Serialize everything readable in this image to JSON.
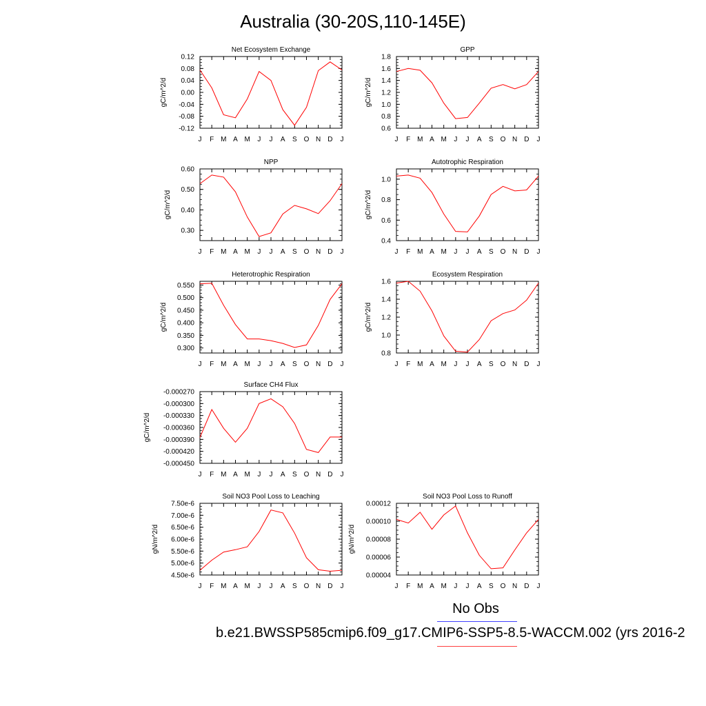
{
  "figure": {
    "title": "Australia (30-20S,110-145E)",
    "legend_obs_label": "No Obs",
    "legend_run_label": "b.e21.BWSSP585cmip6.f09_g17.CMIP6-SSP5-8.5-WACCM.002 (yrs 2016-2",
    "obs_line_color": "#4040ff",
    "line_color": "#ff0000"
  },
  "chart_data": [
    {
      "type": "line",
      "title": "Net Ecosystem Exchange",
      "ylabel": "gC/m^2/d",
      "categories": [
        "J",
        "F",
        "M",
        "A",
        "M",
        "J",
        "J",
        "A",
        "S",
        "O",
        "N",
        "D",
        "J"
      ],
      "ylim": [
        -0.12,
        0.12
      ],
      "yticks": [
        "0.12",
        "0.08",
        "0.04",
        "0.00",
        "-0.04",
        "-0.08",
        "-0.12"
      ],
      "values": [
        0.075,
        0.015,
        -0.075,
        -0.085,
        -0.022,
        0.07,
        0.04,
        -0.058,
        -0.11,
        -0.05,
        0.073,
        0.102,
        0.075
      ]
    },
    {
      "type": "line",
      "title": "GPP",
      "ylabel": "gC/m^2/d",
      "categories": [
        "J",
        "F",
        "M",
        "A",
        "M",
        "J",
        "J",
        "A",
        "S",
        "O",
        "N",
        "D",
        "J"
      ],
      "ylim": [
        0.6,
        1.8
      ],
      "yticks": [
        "1.8",
        "1.6",
        "1.4",
        "1.2",
        "1.0",
        "0.8",
        "0.6"
      ],
      "values": [
        1.55,
        1.6,
        1.57,
        1.36,
        1.02,
        0.76,
        0.78,
        1.02,
        1.27,
        1.33,
        1.26,
        1.33,
        1.55
      ]
    },
    {
      "type": "line",
      "title": "NPP",
      "ylabel": "gC/m^2/d",
      "categories": [
        "J",
        "F",
        "M",
        "A",
        "M",
        "J",
        "J",
        "A",
        "S",
        "O",
        "N",
        "D",
        "J"
      ],
      "ylim": [
        0.25,
        0.6
      ],
      "yticks": [
        "0.60",
        "0.50",
        "0.40",
        "0.30"
      ],
      "values": [
        0.528,
        0.57,
        0.56,
        0.488,
        0.365,
        0.27,
        0.288,
        0.38,
        0.422,
        0.405,
        0.382,
        0.445,
        0.528
      ]
    },
    {
      "type": "line",
      "title": "Autotrophic Respiration",
      "ylabel": "gC/m^2/d",
      "categories": [
        "J",
        "F",
        "M",
        "A",
        "M",
        "J",
        "J",
        "A",
        "S",
        "O",
        "N",
        "D",
        "J"
      ],
      "ylim": [
        0.4,
        1.1
      ],
      "yticks": [
        "1.0",
        "0.8",
        "0.6",
        "0.4"
      ],
      "values": [
        1.03,
        1.04,
        1.01,
        0.87,
        0.66,
        0.49,
        0.485,
        0.64,
        0.85,
        0.93,
        0.885,
        0.895,
        1.03
      ]
    },
    {
      "type": "line",
      "title": "Heterotrophic Respiration",
      "ylabel": "gC/m^2/d",
      "categories": [
        "J",
        "F",
        "M",
        "A",
        "M",
        "J",
        "J",
        "A",
        "S",
        "O",
        "N",
        "D",
        "J"
      ],
      "ylim": [
        0.28,
        0.565
      ],
      "yticks": [
        "0.550",
        "0.500",
        "0.450",
        "0.400",
        "0.350",
        "0.300"
      ],
      "values": [
        0.555,
        0.557,
        0.47,
        0.393,
        0.336,
        0.336,
        0.329,
        0.318,
        0.302,
        0.312,
        0.39,
        0.493,
        0.555
      ]
    },
    {
      "type": "line",
      "title": "Ecosystem Respiration",
      "ylabel": "gC/m^2/d",
      "categories": [
        "J",
        "F",
        "M",
        "A",
        "M",
        "J",
        "J",
        "A",
        "S",
        "O",
        "N",
        "D",
        "J"
      ],
      "ylim": [
        0.8,
        1.6
      ],
      "yticks": [
        "1.6",
        "1.4",
        "1.2",
        "1.0",
        "0.8"
      ],
      "values": [
        1.58,
        1.6,
        1.49,
        1.27,
        0.99,
        0.82,
        0.81,
        0.95,
        1.16,
        1.24,
        1.28,
        1.39,
        1.58
      ]
    },
    {
      "type": "line",
      "title": "Surface CH4 Flux",
      "ylabel": "gC/m^2/d",
      "categories": [
        "J",
        "F",
        "M",
        "A",
        "M",
        "J",
        "J",
        "A",
        "S",
        "O",
        "N",
        "D",
        "J"
      ],
      "ylim": [
        -0.00045,
        -0.00027
      ],
      "yticks": [
        "-0.000270",
        "-0.000300",
        "-0.000330",
        "-0.000360",
        "-0.000390",
        "-0.000420",
        "-0.000450"
      ],
      "values": [
        -0.000385,
        -0.000315,
        -0.000362,
        -0.000397,
        -0.000362,
        -0.0003,
        -0.000288,
        -0.000308,
        -0.00035,
        -0.000415,
        -0.000423,
        -0.000384,
        -0.000384
      ]
    },
    {
      "type": "line",
      "title": "Soil NO3 Pool Loss to Leaching",
      "ylabel": "gN/m^2/d",
      "categories": [
        "J",
        "F",
        "M",
        "A",
        "M",
        "J",
        "J",
        "A",
        "S",
        "O",
        "N",
        "D",
        "J"
      ],
      "ylim": [
        4.5e-06,
        7.5e-06
      ],
      "yticks": [
        "7.50e-6",
        "7.00e-6",
        "6.50e-6",
        "6.00e-6",
        "5.50e-6",
        "5.00e-6",
        "4.50e-6"
      ],
      "values": [
        4.7e-06,
        5.12e-06,
        5.46e-06,
        5.56e-06,
        5.68e-06,
        6.32e-06,
        7.22e-06,
        7.1e-06,
        6.25e-06,
        5.22e-06,
        4.72e-06,
        4.66e-06,
        4.7e-06
      ]
    },
    {
      "type": "line",
      "title": "Soil NO3 Pool Loss to Runoff",
      "ylabel": "gN/m^2/d",
      "categories": [
        "J",
        "F",
        "M",
        "A",
        "M",
        "J",
        "J",
        "A",
        "S",
        "O",
        "N",
        "D",
        "J"
      ],
      "ylim": [
        4e-05,
        0.00012
      ],
      "yticks": [
        "0.00012",
        "0.00010",
        "0.00008",
        "0.00006",
        "0.00004"
      ],
      "values": [
        0.000102,
        9.8e-05,
        0.00011,
        9.1e-05,
        0.000107,
        0.000117,
        8.7e-05,
        6.2e-05,
        4.7e-05,
        4.8e-05,
        6.8e-05,
        8.7e-05,
        0.000102
      ]
    }
  ]
}
